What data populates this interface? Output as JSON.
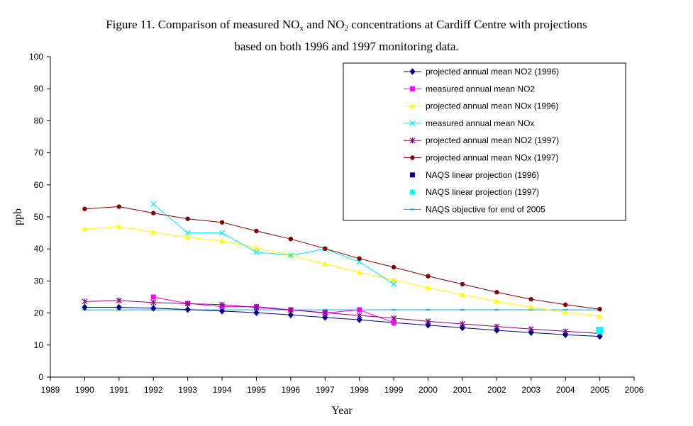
{
  "chart_data": {
    "type": "line",
    "title_parts": {
      "a": "Figure 11. Comparison of measured NO",
      "sub1": "x",
      "b": " and NO",
      "sub2": "2",
      "c": " concentrations at Cardiff Centre with projections",
      "line2": "based on both 1996 and 1997 monitoring data."
    },
    "xlabel": "Year",
    "ylabel": "ppb",
    "xlim": [
      1989,
      2006
    ],
    "ylim": [
      0,
      100
    ],
    "xticks": [
      1989,
      1990,
      1991,
      1992,
      1993,
      1994,
      1995,
      1996,
      1997,
      1998,
      1999,
      2000,
      2001,
      2002,
      2003,
      2004,
      2005,
      2006
    ],
    "yticks": [
      0,
      10,
      20,
      30,
      40,
      50,
      60,
      70,
      80,
      90,
      100
    ],
    "grid": false,
    "legend_position": "top-right",
    "series": [
      {
        "name": "projected annual mean NO2 (1996)",
        "color": "#000080",
        "marker": "diamond",
        "line": true,
        "points": [
          [
            1990,
            21.8
          ],
          [
            1991,
            21.8
          ],
          [
            1992,
            21.5
          ],
          [
            1993,
            21.1
          ],
          [
            1994,
            20.6
          ],
          [
            1995,
            20.1
          ],
          [
            1996,
            19.4
          ],
          [
            1997,
            18.6
          ],
          [
            1998,
            17.9
          ],
          [
            1999,
            17.0
          ],
          [
            2000,
            16.2
          ],
          [
            2001,
            15.4
          ],
          [
            2002,
            14.6
          ],
          [
            2003,
            13.9
          ],
          [
            2004,
            13.2
          ],
          [
            2005,
            12.7
          ]
        ]
      },
      {
        "name": "measured annual mean NO2",
        "color": "#ff00ff",
        "marker": "square",
        "line": true,
        "points": [
          [
            1992,
            25.0
          ],
          [
            1993,
            23.0
          ],
          [
            1994,
            22.0
          ],
          [
            1995,
            22.0
          ],
          [
            1996,
            21.0
          ],
          [
            1997,
            20.0
          ],
          [
            1998,
            21.0
          ],
          [
            1999,
            17.0
          ]
        ]
      },
      {
        "name": "projected annual mean NOx (1996)",
        "color": "#ffff00",
        "marker": "triangle",
        "line": true,
        "points": [
          [
            1990,
            46.2
          ],
          [
            1991,
            47.0
          ],
          [
            1992,
            45.2
          ],
          [
            1993,
            43.6
          ],
          [
            1994,
            42.5
          ],
          [
            1995,
            40.3
          ],
          [
            1996,
            38.0
          ],
          [
            1997,
            35.3
          ],
          [
            1998,
            32.7
          ],
          [
            1999,
            30.3
          ],
          [
            2000,
            27.9
          ],
          [
            2001,
            25.7
          ],
          [
            2002,
            23.6
          ],
          [
            2003,
            21.8
          ],
          [
            2004,
            20.2
          ],
          [
            2005,
            19.0
          ]
        ]
      },
      {
        "name": "measured annual mean NOx",
        "color": "#00e5ee",
        "marker": "x",
        "line": true,
        "points": [
          [
            1992,
            54.0
          ],
          [
            1993,
            45.0
          ],
          [
            1994,
            45.0
          ],
          [
            1995,
            39.0
          ],
          [
            1996,
            38.0
          ],
          [
            1997,
            40.0
          ],
          [
            1998,
            36.0
          ],
          [
            1999,
            29.0
          ]
        ]
      },
      {
        "name": "projected annual mean NO2 (1997)",
        "color": "#800080",
        "marker": "star",
        "line": true,
        "points": [
          [
            1990,
            23.6
          ],
          [
            1991,
            23.9
          ],
          [
            1992,
            23.3
          ],
          [
            1993,
            22.9
          ],
          [
            1994,
            22.6
          ],
          [
            1995,
            21.7
          ],
          [
            1996,
            21.0
          ],
          [
            1997,
            20.1
          ],
          [
            1998,
            19.2
          ],
          [
            1999,
            18.4
          ],
          [
            2000,
            17.4
          ],
          [
            2001,
            16.6
          ],
          [
            2002,
            15.8
          ],
          [
            2003,
            15.0
          ],
          [
            2004,
            14.3
          ],
          [
            2005,
            13.6
          ]
        ]
      },
      {
        "name": "projected annual mean NOx (1997)",
        "color": "#800000",
        "marker": "circle",
        "line": true,
        "points": [
          [
            1990,
            52.5
          ],
          [
            1991,
            53.2
          ],
          [
            1992,
            51.2
          ],
          [
            1993,
            49.4
          ],
          [
            1994,
            48.3
          ],
          [
            1995,
            45.6
          ],
          [
            1996,
            43.1
          ],
          [
            1997,
            40.1
          ],
          [
            1998,
            37.0
          ],
          [
            1999,
            34.3
          ],
          [
            2000,
            31.5
          ],
          [
            2001,
            29.0
          ],
          [
            2002,
            26.5
          ],
          [
            2003,
            24.3
          ],
          [
            2004,
            22.6
          ],
          [
            2005,
            21.2
          ]
        ]
      },
      {
        "name": "NAQS linear projection (1996)",
        "color": "#000080",
        "marker": "square-big",
        "line": false,
        "points": [
          [
            2005,
            14.6
          ]
        ]
      },
      {
        "name": "NAQS linear projection (1997)",
        "color": "#00ffff",
        "marker": "square-big",
        "line": false,
        "points": [
          [
            2005,
            14.6
          ]
        ]
      },
      {
        "name": "NAQS objective for end of 2005",
        "color": "#00aaee",
        "marker": "dash",
        "line": true,
        "points": [
          [
            1990,
            21
          ],
          [
            1991,
            21
          ],
          [
            1992,
            21
          ],
          [
            1993,
            21
          ],
          [
            1994,
            21
          ],
          [
            1995,
            21
          ],
          [
            1996,
            21
          ],
          [
            1997,
            21
          ],
          [
            1998,
            21
          ],
          [
            1999,
            21
          ],
          [
            2000,
            21
          ],
          [
            2001,
            21
          ],
          [
            2002,
            21
          ],
          [
            2003,
            21
          ],
          [
            2004,
            21
          ],
          [
            2005,
            21
          ]
        ]
      }
    ]
  }
}
